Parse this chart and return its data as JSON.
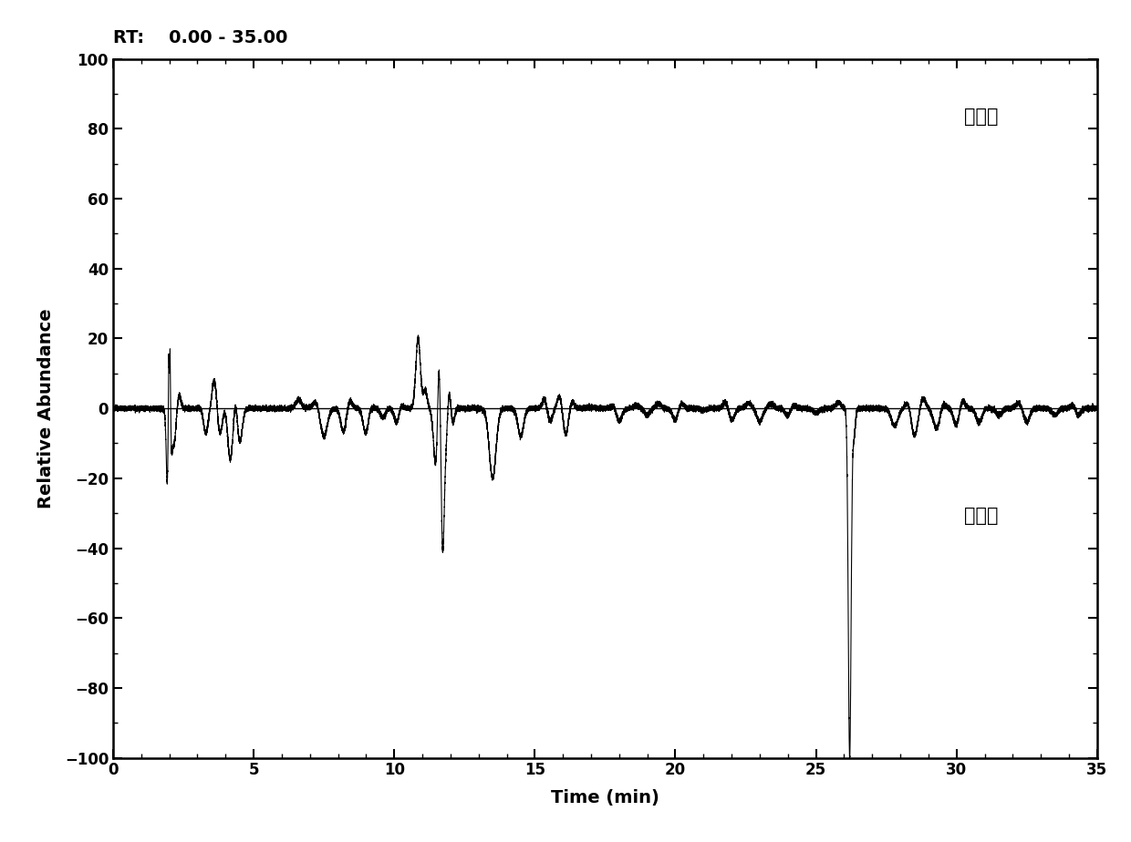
{
  "title": "RT:    0.00 - 35.00",
  "xlabel": "Time (min)",
  "ylabel": "Relative Abundance",
  "label_top_right": "酸枣仁",
  "label_bottom_right": "理枣仁",
  "xlim": [
    0,
    35
  ],
  "ylim": [
    -100,
    100
  ],
  "yticks": [
    -100,
    -80,
    -60,
    -40,
    -20,
    0,
    20,
    40,
    60,
    80,
    100
  ],
  "xticks": [
    0,
    5,
    10,
    15,
    20,
    25,
    30,
    35
  ],
  "line_color": "#000000",
  "background_color": "#ffffff",
  "title_fontsize": 14,
  "axis_label_fontsize": 13,
  "tick_fontsize": 12,
  "annotation_fontsize": 15
}
